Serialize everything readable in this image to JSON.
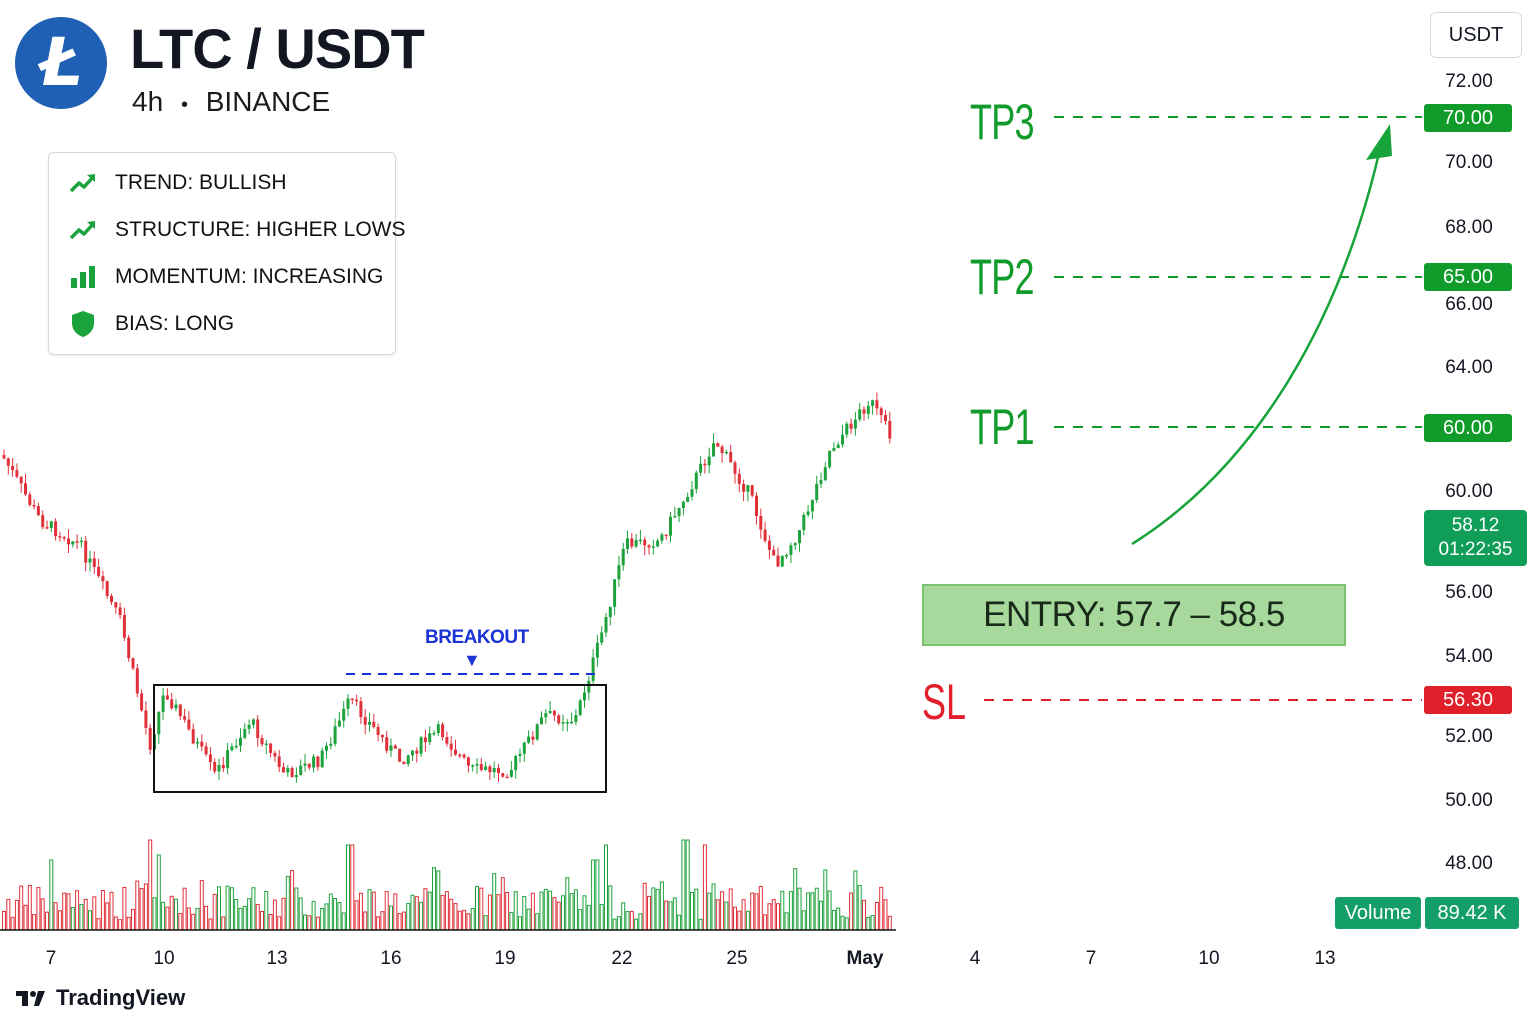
{
  "header": {
    "logo_icon": "litecoin-logo-icon",
    "logo_glyph": "Ł",
    "pair": "LTC / USDT",
    "interval": "4h",
    "separator": "•",
    "exchange": "BINANCE"
  },
  "info_box": [
    {
      "icon": "trend-up-icon",
      "text": "TREND: BULLISH"
    },
    {
      "icon": "trend-up-icon",
      "text": "STRUCTURE: HIGHER LOWS"
    },
    {
      "icon": "bar-chart-icon",
      "text": "MOMENTUM: INCREASING"
    },
    {
      "icon": "shield-icon",
      "text": "BIAS: LONG"
    }
  ],
  "currency_button": "USDT",
  "price_axis_ticks": [
    "72.00",
    "70.00",
    "68.00",
    "66.00",
    "64.00",
    "60.00",
    "56.00",
    "54.00",
    "52.00",
    "50.00",
    "48.00"
  ],
  "levels": {
    "tp3": {
      "label": "TP3",
      "price": "70.00"
    },
    "tp2": {
      "label": "TP2",
      "price": "65.00"
    },
    "tp1": {
      "label": "TP1",
      "price": "60.00"
    },
    "sl": {
      "label": "SL",
      "price": "56.30"
    },
    "entry": "ENTRY: 57.7 – 58.5"
  },
  "current_price": {
    "price": "58.12",
    "countdown": "01:22:35"
  },
  "volume": {
    "label": "Volume",
    "value": "89.42 K"
  },
  "annotation": {
    "breakout": "BREAKOUT",
    "breakout_marker": "▼"
  },
  "date_axis": [
    "7",
    "10",
    "13",
    "16",
    "19",
    "22",
    "25",
    "May",
    "4",
    "7",
    "10",
    "13"
  ],
  "branding": "TradingView",
  "colors": {
    "bull": "#089981",
    "candle_up": "#1ea33c",
    "candle_down": "#e0313a",
    "tp": "#109b2b",
    "sl": "#e0202a",
    "breakout": "#1a33d6",
    "logo": "#1f5fb4"
  },
  "chart_data": {
    "type": "candlestick",
    "symbol": "LTC / USDT",
    "interval": "4h",
    "y_axis_ticks": [
      72,
      70,
      68,
      66,
      64,
      60,
      56,
      54,
      52,
      50,
      48
    ],
    "x_axis_ticks": [
      "7",
      "10",
      "13",
      "16",
      "19",
      "22",
      "25",
      "May",
      "4",
      "7",
      "10",
      "13"
    ],
    "trend_path_close": [
      {
        "x": "7",
        "close": 57.5
      },
      {
        "x": "8",
        "close": 56.2
      },
      {
        "x": "9",
        "close": 54.6
      },
      {
        "x": "10",
        "close": 51.6
      },
      {
        "x": "11",
        "close": 50.9
      },
      {
        "x": "12",
        "close": 49.7
      },
      {
        "x": "13",
        "close": 49.8
      },
      {
        "x": "14",
        "close": 50.6
      },
      {
        "x": "15",
        "close": 51.2
      },
      {
        "x": "16",
        "close": 50.3
      },
      {
        "x": "17",
        "close": 50.7
      },
      {
        "x": "18",
        "close": 50.2
      },
      {
        "x": "19",
        "close": 49.7
      },
      {
        "x": "20",
        "close": 50.9
      },
      {
        "x": "21",
        "close": 52.0
      },
      {
        "x": "22",
        "close": 56.4
      },
      {
        "x": "23",
        "close": 57.3
      },
      {
        "x": "24",
        "close": 59.4
      },
      {
        "x": "25",
        "close": 58.5
      },
      {
        "x": "26",
        "close": 57.0
      },
      {
        "x": "27",
        "close": 57.6
      },
      {
        "x": "28",
        "close": 59.2
      },
      {
        "x": "29",
        "close": 60.6
      },
      {
        "x": "30",
        "close": 61.2
      },
      {
        "x": "May",
        "close": 60.2
      }
    ],
    "range_box": {
      "from": "10",
      "to": "21",
      "high": 51.6,
      "low": 48.7
    },
    "breakout_level": 51.9,
    "levels": {
      "tp3": 70.0,
      "tp2": 65.0,
      "tp1": 60.0,
      "entry_low": 57.7,
      "entry_high": 58.5,
      "sl": 56.3
    },
    "current_price": 58.12,
    "volume_last": "89.42 K",
    "annotations": [
      "BREAKOUT",
      "TP3",
      "TP2",
      "TP1",
      "SL",
      "ENTRY: 57.7 – 58.5"
    ],
    "grid": false
  }
}
